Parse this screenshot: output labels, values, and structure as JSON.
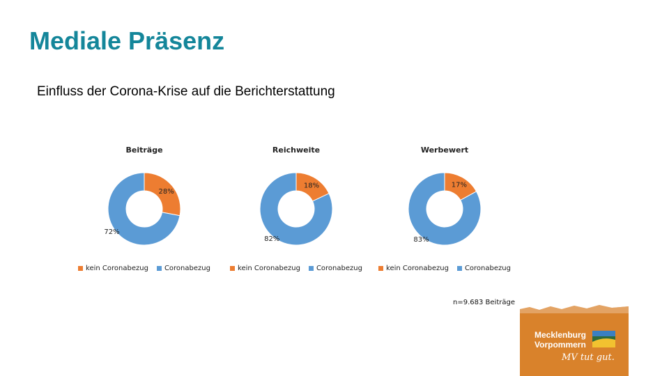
{
  "slide": {
    "title": "Mediale Präsenz",
    "subtitle": "Einfluss der Corona-Krise auf die Berichterstattung",
    "note": "n=9.683 Beiträge"
  },
  "colors": {
    "kein": "#ed7d31",
    "corona": "#5b9bd5",
    "title": "#14869a"
  },
  "chart_data": [
    {
      "type": "pie",
      "title": "Beiträge",
      "categories": [
        "kein Coronabezug",
        "Coronabezug"
      ],
      "values": [
        28,
        72
      ],
      "labels": [
        "28%",
        "72%"
      ],
      "legend": "bottom"
    },
    {
      "type": "pie",
      "title": "Reichweite",
      "categories": [
        "kein Coronabezug",
        "Coronabezug"
      ],
      "values": [
        18,
        82
      ],
      "labels": [
        "18%",
        "82%"
      ],
      "legend": "bottom"
    },
    {
      "type": "pie",
      "title": "Werbewert",
      "categories": [
        "kein Coronabezug",
        "Coronabezug"
      ],
      "values": [
        17,
        83
      ],
      "labels": [
        "17%",
        "83%"
      ],
      "legend": "bottom"
    }
  ],
  "logo": {
    "line1": "Mecklenburg",
    "line2": "Vorpommern",
    "slogan": "MV tut gut."
  }
}
